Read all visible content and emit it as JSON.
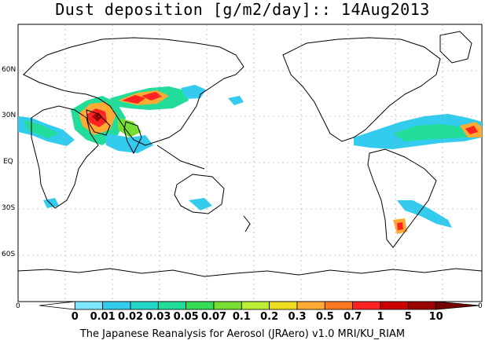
{
  "title": "Dust deposition [g/m2/day]:: 14Aug2013",
  "latitude_labels": [
    "60N",
    "30N",
    "EQ",
    "30S",
    "60S"
  ],
  "colorbar": {
    "labels": [
      "0",
      "0.01",
      "0.02",
      "0.03",
      "0.05",
      "0.07",
      "0.1",
      "0.2",
      "0.3",
      "0.5",
      "0.7",
      "1",
      "5",
      "10"
    ],
    "colors": [
      "#ffffff",
      "#7ee8ff",
      "#33ccee",
      "#22d6c8",
      "#22dd99",
      "#33dd55",
      "#77dd33",
      "#bbee33",
      "#eedd22",
      "#ffaa33",
      "#ff7722",
      "#ff2222",
      "#cc0000",
      "#990000",
      "#770000"
    ],
    "left_end": "0",
    "right_end": "0"
  },
  "credit": "The Japanese Reanalysis for Aerosol (JRAero) v1.0 MRI/KU_RIAM"
}
